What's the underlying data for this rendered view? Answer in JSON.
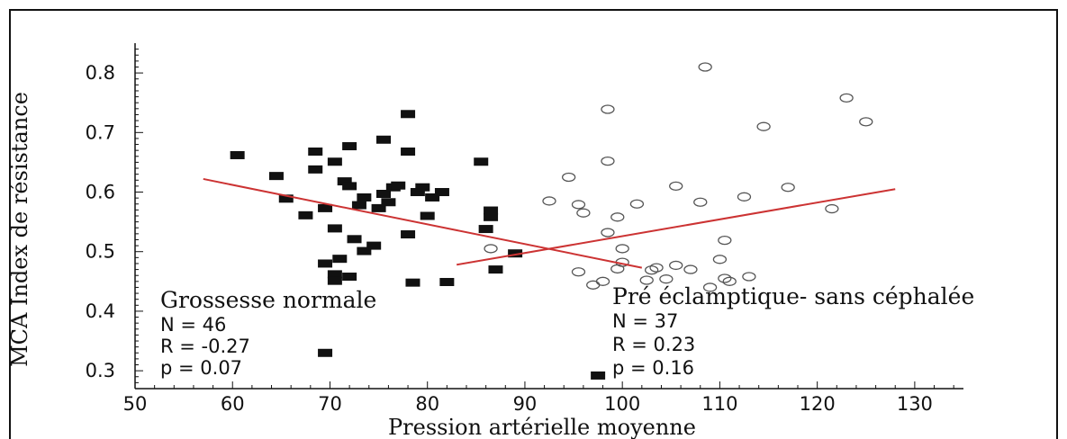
{
  "chart_data": {
    "type": "scatter",
    "xlabel": "Pression artérielle moyenne",
    "ylabel": "MCA  Index de résistance",
    "xlim": [
      50,
      135
    ],
    "ylim": [
      0.27,
      0.85
    ],
    "xticks": [
      50,
      60,
      70,
      80,
      90,
      100,
      110,
      120,
      130
    ],
    "yticks": [
      0.3,
      0.4,
      0.5,
      0.6,
      0.7,
      0.8
    ],
    "ytick_labels": [
      "0.3",
      "0.4",
      "0.5",
      "0.6",
      "0.7",
      "0.8"
    ],
    "colors": {
      "normal": "#111111",
      "preeclampsia": "#555555",
      "fit_line": "#cc3333"
    },
    "series": [
      {
        "name": "Grossesse normale",
        "marker": "filled-square",
        "stats": [
          "N = 46",
          "R = -0.27",
          "p = 0.07"
        ],
        "fit": {
          "x": [
            57,
            102
          ],
          "y": [
            0.622,
            0.473
          ]
        },
        "points": [
          [
            60.5,
            0.662
          ],
          [
            64.5,
            0.627
          ],
          [
            65.5,
            0.589
          ],
          [
            68.5,
            0.668
          ],
          [
            68.5,
            0.638
          ],
          [
            67.5,
            0.561
          ],
          [
            69.5,
            0.573
          ],
          [
            70.5,
            0.651
          ],
          [
            72,
            0.677
          ],
          [
            71.5,
            0.618
          ],
          [
            72,
            0.61
          ],
          [
            70.5,
            0.539
          ],
          [
            69.5,
            0.48
          ],
          [
            71,
            0.488
          ],
          [
            70.5,
            0.462
          ],
          [
            70.5,
            0.451
          ],
          [
            72,
            0.458
          ],
          [
            73,
            0.578
          ],
          [
            72.5,
            0.521
          ],
          [
            73.5,
            0.501
          ],
          [
            74.5,
            0.51
          ],
          [
            75,
            0.573
          ],
          [
            75.5,
            0.597
          ],
          [
            75.5,
            0.688
          ],
          [
            76.5,
            0.608
          ],
          [
            76,
            0.583
          ],
          [
            78,
            0.731
          ],
          [
            78,
            0.668
          ],
          [
            78,
            0.529
          ],
          [
            78.5,
            0.448
          ],
          [
            79,
            0.6
          ],
          [
            79.5,
            0.608
          ],
          [
            80,
            0.56
          ],
          [
            81.5,
            0.6
          ],
          [
            82,
            0.449
          ],
          [
            85.5,
            0.651
          ],
          [
            86,
            0.538
          ],
          [
            86.5,
            0.569
          ],
          [
            86.5,
            0.558
          ],
          [
            87,
            0.47
          ],
          [
            89,
            0.497
          ],
          [
            69.5,
            0.33
          ],
          [
            97.5,
            0.292
          ],
          [
            73.5,
            0.591
          ],
          [
            77,
            0.611
          ],
          [
            80.5,
            0.591
          ]
        ]
      },
      {
        "name": "Pré éclamptique- sans céphalée",
        "marker": "open-circle",
        "stats": [
          "N = 37",
          "R = 0.23",
          "p = 0.16"
        ],
        "fit": {
          "x": [
            83,
            128
          ],
          "y": [
            0.478,
            0.605
          ]
        },
        "points": [
          [
            108.5,
            0.81
          ],
          [
            98.5,
            0.739
          ],
          [
            123,
            0.758
          ],
          [
            125,
            0.718
          ],
          [
            114.5,
            0.71
          ],
          [
            98.5,
            0.652
          ],
          [
            94.5,
            0.625
          ],
          [
            92.5,
            0.585
          ],
          [
            95.5,
            0.579
          ],
          [
            96,
            0.565
          ],
          [
            99.5,
            0.558
          ],
          [
            101.5,
            0.58
          ],
          [
            105.5,
            0.61
          ],
          [
            108,
            0.583
          ],
          [
            112.5,
            0.592
          ],
          [
            117,
            0.608
          ],
          [
            121.5,
            0.572
          ],
          [
            98.5,
            0.532
          ],
          [
            100,
            0.505
          ],
          [
            86.5,
            0.505
          ],
          [
            110.5,
            0.519
          ],
          [
            110,
            0.487
          ],
          [
            100,
            0.482
          ],
          [
            99.5,
            0.471
          ],
          [
            103.5,
            0.473
          ],
          [
            105.5,
            0.477
          ],
          [
            95.5,
            0.466
          ],
          [
            98,
            0.45
          ],
          [
            97,
            0.444
          ],
          [
            102.5,
            0.452
          ],
          [
            104.5,
            0.454
          ],
          [
            109,
            0.44
          ],
          [
            111,
            0.45
          ],
          [
            110.5,
            0.455
          ],
          [
            113,
            0.458
          ],
          [
            103,
            0.469
          ],
          [
            107,
            0.47
          ]
        ]
      }
    ]
  }
}
